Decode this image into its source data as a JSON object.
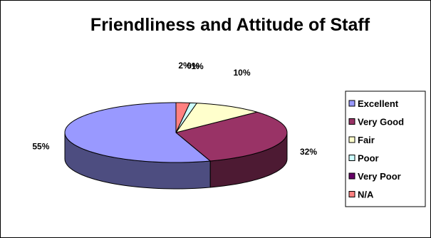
{
  "chart_data": {
    "type": "pie",
    "title": "Friendliness and Attitude of Staff",
    "categories": [
      "Excellent",
      "Very Good",
      "Fair",
      "Poor",
      "Very Poor",
      "N/A"
    ],
    "values": [
      55,
      32,
      10,
      1,
      0,
      2
    ],
    "value_labels": [
      "55%",
      "32%",
      "10%",
      "1%",
      "0%",
      "2%"
    ],
    "colors": [
      "#9999ff",
      "#993366",
      "#ffffcc",
      "#ccffff",
      "#660066",
      "#ff8080"
    ],
    "legend_position": "right",
    "three_d": true
  }
}
